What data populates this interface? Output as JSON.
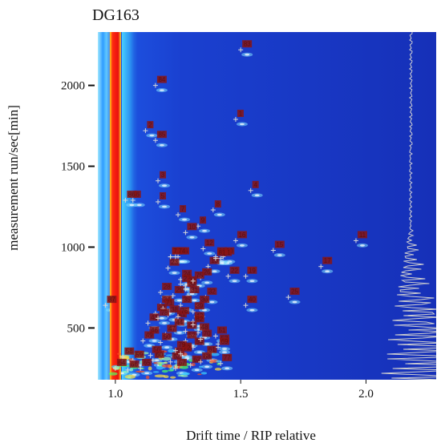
{
  "chart_data": {
    "type": "heatmap",
    "title": "DG163",
    "xlabel": "Drift time / RIP relative",
    "ylabel": "measurement run/sec[min]",
    "xlim": [
      0.93,
      2.28
    ],
    "ylim": [
      180,
      2330
    ],
    "x_ticks": [
      1.0,
      1.5,
      2.0
    ],
    "x_tick_labels": [
      "1.0",
      "1.5",
      "2.0"
    ],
    "y_ticks": [
      500,
      1000,
      1500,
      2000
    ],
    "y_tick_labels": [
      "500",
      "1000",
      "1500",
      "2000"
    ],
    "rip_position": 1.0,
    "grid": false,
    "colors": {
      "background": "#1530c0",
      "rip": "#ee1010",
      "marker": "#d4d4d4",
      "label_box": "#8a1414",
      "spectrum_line": "#c8c8c8"
    },
    "peaks": [
      {
        "label": "1",
        "x": 1.48,
        "y": 1790
      },
      {
        "label": "2",
        "x": 1.12,
        "y": 1720
      },
      {
        "label": "3",
        "x": 1.17,
        "y": 1410
      },
      {
        "label": "4",
        "x": 1.54,
        "y": 1350
      },
      {
        "label": "5",
        "x": 1.17,
        "y": 1280
      },
      {
        "label": "6",
        "x": 1.07,
        "y": 1290
      },
      {
        "label": "7",
        "x": 1.25,
        "y": 1200
      },
      {
        "label": "8",
        "x": 1.39,
        "y": 1230
      },
      {
        "label": "9",
        "x": 1.33,
        "y": 1130
      },
      {
        "label": "10",
        "x": 1.28,
        "y": 1090
      },
      {
        "label": "11",
        "x": 1.96,
        "y": 1040
      },
      {
        "label": "12",
        "x": 1.35,
        "y": 990
      },
      {
        "label": "13",
        "x": 1.22,
        "y": 940
      },
      {
        "label": "14",
        "x": 1.25,
        "y": 940
      },
      {
        "label": "15",
        "x": 1.63,
        "y": 980
      },
      {
        "label": "16",
        "x": 1.48,
        "y": 1040
      },
      {
        "label": "17",
        "x": 1.82,
        "y": 880
      },
      {
        "label": "18",
        "x": 1.37,
        "y": 880
      },
      {
        "label": "19",
        "x": 1.52,
        "y": 820
      },
      {
        "label": "20",
        "x": 1.43,
        "y": 940
      },
      {
        "label": "21",
        "x": 1.42,
        "y": 930
      },
      {
        "label": "22",
        "x": 1.45,
        "y": 820
      },
      {
        "label": "23",
        "x": 1.21,
        "y": 870
      },
      {
        "label": "24",
        "x": 1.26,
        "y": 800
      },
      {
        "label": "25",
        "x": 1.69,
        "y": 690
      },
      {
        "label": "26",
        "x": 1.34,
        "y": 810
      },
      {
        "label": "27",
        "x": 1.26,
        "y": 770
      },
      {
        "label": "28",
        "x": 1.18,
        "y": 720
      },
      {
        "label": "29",
        "x": 1.23,
        "y": 700
      },
      {
        "label": "30",
        "x": 1.28,
        "y": 760
      },
      {
        "label": "31",
        "x": 1.29,
        "y": 700
      },
      {
        "label": "32",
        "x": 1.36,
        "y": 690
      },
      {
        "label": "33",
        "x": 1.28,
        "y": 740
      },
      {
        "label": "34",
        "x": 1.18,
        "y": 640
      },
      {
        "label": "35",
        "x": 1.26,
        "y": 640
      },
      {
        "label": "36",
        "x": 1.33,
        "y": 640
      },
      {
        "label": "37",
        "x": 1.16,
        "y": 590
      },
      {
        "label": "38",
        "x": 1.21,
        "y": 580
      },
      {
        "label": "39",
        "x": 1.31,
        "y": 600
      },
      {
        "label": "40",
        "x": 1.52,
        "y": 640
      },
      {
        "label": "41",
        "x": 1.24,
        "y": 550
      },
      {
        "label": "42",
        "x": 1.31,
        "y": 540
      },
      {
        "label": "43",
        "x": 1.13,
        "y": 530
      },
      {
        "label": "44",
        "x": 1.23,
        "y": 500
      },
      {
        "label": "45",
        "x": 1.28,
        "y": 480
      },
      {
        "label": "46",
        "x": 1.13,
        "y": 450
      },
      {
        "label": "47",
        "x": 1.2,
        "y": 460
      },
      {
        "label": "48",
        "x": 1.33,
        "y": 470
      },
      {
        "label": "49",
        "x": 1.11,
        "y": 420
      },
      {
        "label": "50",
        "x": 1.18,
        "y": 410
      },
      {
        "label": "51",
        "x": 1.4,
        "y": 450
      },
      {
        "label": "52",
        "x": 1.28,
        "y": 420
      },
      {
        "label": "53",
        "x": 1.41,
        "y": 400
      },
      {
        "label": "54",
        "x": 1.31,
        "y": 380
      },
      {
        "label": "55",
        "x": 1.26,
        "y": 350
      },
      {
        "label": "56",
        "x": 1.14,
        "y": 330
      },
      {
        "label": "57",
        "x": 1.23,
        "y": 320
      },
      {
        "label": "58",
        "x": 1.03,
        "y": 320
      },
      {
        "label": "59",
        "x": 1.07,
        "y": 300
      },
      {
        "label": "60",
        "x": 1.15,
        "y": 300
      },
      {
        "label": "61",
        "x": 1.36,
        "y": 330
      },
      {
        "label": "62",
        "x": 1.22,
        "y": 290
      },
      {
        "label": "63",
        "x": 1.3,
        "y": 270
      },
      {
        "label": "64",
        "x": 1.0,
        "y": 250
      },
      {
        "label": "65",
        "x": 1.1,
        "y": 250
      },
      {
        "label": "66",
        "x": 1.05,
        "y": 240
      },
      {
        "label": "67",
        "x": 1.24,
        "y": 250
      },
      {
        "label": "68",
        "x": 1.34,
        "y": 290
      },
      {
        "label": "69",
        "x": 1.41,
        "y": 380
      },
      {
        "label": "70",
        "x": 1.34,
        "y": 430
      },
      {
        "label": "71",
        "x": 1.19,
        "y": 620
      },
      {
        "label": "72",
        "x": 1.26,
        "y": 340
      },
      {
        "label": "73",
        "x": 1.22,
        "y": 940
      },
      {
        "label": "74",
        "x": 1.24,
        "y": 940
      },
      {
        "label": "75",
        "x": 1.31,
        "y": 790
      },
      {
        "label": "76",
        "x": 1.25,
        "y": 570
      },
      {
        "label": "77",
        "x": 1.42,
        "y": 280
      },
      {
        "label": "78",
        "x": 1.17,
        "y": 560
      },
      {
        "label": "79",
        "x": 1.24,
        "y": 360
      },
      {
        "label": "80",
        "x": 1.4,
        "y": 940
      },
      {
        "label": "81",
        "x": 1.4,
        "y": 930
      },
      {
        "label": "82",
        "x": 1.31,
        "y": 520
      },
      {
        "label": "83",
        "x": 1.5,
        "y": 2220
      },
      {
        "label": "84",
        "x": 1.16,
        "y": 2000
      },
      {
        "label": "85",
        "x": 1.16,
        "y": 1660
      },
      {
        "label": "86",
        "x": 1.04,
        "y": 1290
      },
      {
        "label": "87",
        "x": 0.96,
        "y": 640
      }
    ]
  }
}
